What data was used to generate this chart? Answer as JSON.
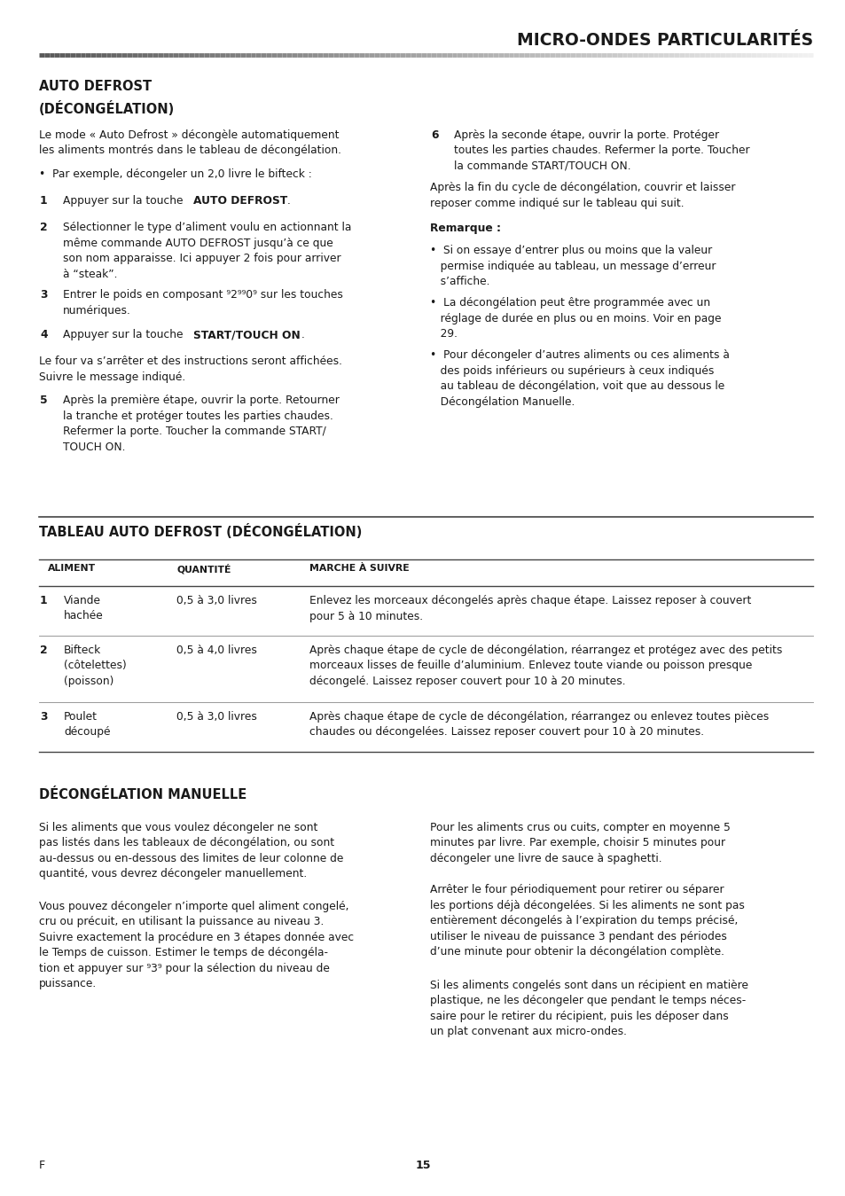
{
  "page_width": 9.54,
  "page_height": 13.49,
  "bg_color": "#ffffff",
  "title": "MICRO-ONDES PARTICULARITÉS",
  "section1_title_line1": "AUTO DEFROST",
  "section1_title_line2": "(DÉCONGÉLATION)",
  "p1": "Le mode « Auto Defrost » décongèle automatiquement\nles aliments montrés dans le tableau de décongélation.",
  "bullet0": "•  Par exemple, décongeler un 2,0 livre le bifteck :",
  "item1_num": "1",
  "item1_text": "Appuyer sur la touche AUTO DEFROST.",
  "item1_bold": "AUTO DEFROST",
  "item2_num": "2",
  "item2_text": "Sélectionner le type d’aliment voulu en actionnant la même commande AUTO DEFROST jusqu’à ce que son nom apparaisse. Ici appuyer 2 fois pour arriver à “steak”.",
  "item3_num": "3",
  "item3_text": "Entrer le poids en composant ⁹2⁹⁹0⁹ sur les touches numériques.",
  "item4_num": "4",
  "item4_text": "Appuyer sur la touche START/TOUCH ON.",
  "p_mid": "Le four va s’arrêter et des instructions seront affichées.\nSuivre le message indiqué.",
  "item5_num": "5",
  "item5_text": "Après la première étape, ouvrir la porte. Retourner la tranche et protéger toutes les parties chaudes. Refermer la porte. Toucher la commande START/\nTOUCH ON.",
  "item6_num": "6",
  "item6_text": "Après la seconde étape, ouvrir la porte. Protéger toutes les parties chaudes. Refermer la porte. Toucher la commande START/TOUCH ON.",
  "p_after6": "Après la fin du cycle de décongélation, couvrir et laisser\nreposer comme indiqué sur le tableau qui suit.",
  "remarque": "Remarque :",
  "bullet1": "•  Si on essaye d’entrer plus ou moins que la valeur permise indiquée au tableau, un message d’erreur s’affiche.",
  "bullet2": "•  La décongélation peut être programmée avec un réglage de durée en plus ou en moins. Voir en page 29.",
  "bullet3": "•  Pour décongeler d’autres aliments ou ces aliments à des poids inférieurs ou supérieurs à ceux indiqués au tableau de décongélation, voit que au dessous le Décongélation Manuelle.",
  "table_title": "TABLEAU AUTO DEFROST (DÉCONGÉLATION)",
  "table_headers": [
    "ALIMENT",
    "QUANTITÉ",
    "MARCHE À SUIVRE"
  ],
  "table_rows": [
    [
      "1",
      "Viande\nhachée",
      "0,5 à 3,0 livres",
      "Enlevez les morceaux décongelés après chaque étape. Laissez reposer à couvert\npour 5 à 10 minutes."
    ],
    [
      "2",
      "Bifteck\n(côtelettes)\n(poisson)",
      "0,5 à 4,0 livres",
      "Après chaque étape de cycle de décongélation, réarrangez et protégez avec des petits\nmorceaux lisses de feuille d’aluminium. Enlevez toute viande ou poisson presque\ndécongelé. Laissez reposer couvert pour 10 à 20 minutes."
    ],
    [
      "3",
      "Poulet\ndécoupé",
      "0,5 à 3,0 livres",
      "Après chaque étape de cycle de décongélation, réarrangez ou enlevez toutes pièces\nchaudes ou décongelées. Laissez reposer couvert pour 10 à 20 minutes."
    ]
  ],
  "section3_title": "DÉCONGÉLATION MANUELLE",
  "sec3_left1": "Si les aliments que vous voulez décongeler ne sont\npas listés dans les tableaux de décongélation, ou sont\nau-dessus ou en-dessous des limites de leur colonne de\nquantité, vous devrez décongeler manuellement.",
  "sec3_left2": "Vous pouvez décongeler n’importe quel aliment congelé,\ncru ou précuit, en utilisant la puissance au niveau 3.\nSuivre exactement la procédure en 3 étapes donnée avec\nle Temps de cuisson. Estimer le temps de décongéla-\ntion et appuyer sur ⁹3⁹ pour la sélection du niveau de\npuissance.",
  "sec3_right1": "Pour les aliments crus ou cuits, compter en moyenne 5\nminutes par livre. Par exemple, choisir 5 minutes pour\ndécongeler une livre de sauce à spaghetti.",
  "sec3_right2": "Arrêter le four périodiquement pour retirer ou séparer\nles portions déjà décongelées. Si les aliments ne sont pas\nentièrement décongelés à l’expiration du temps précisé,\nutiliser le niveau de puissance 3 pendant des périodes\nd’une minute pour obtenir la décongélation complète.",
  "sec3_right3": "Si les aliments congelés sont dans un récipient en matière\nplastique, ne les décongeler que pendant le temps néces-\nsaire pour le retirer du récipient, puis les déposer dans\nun plat convenant aux micro-ondes.",
  "footer_left": "F",
  "footer_center": "15"
}
